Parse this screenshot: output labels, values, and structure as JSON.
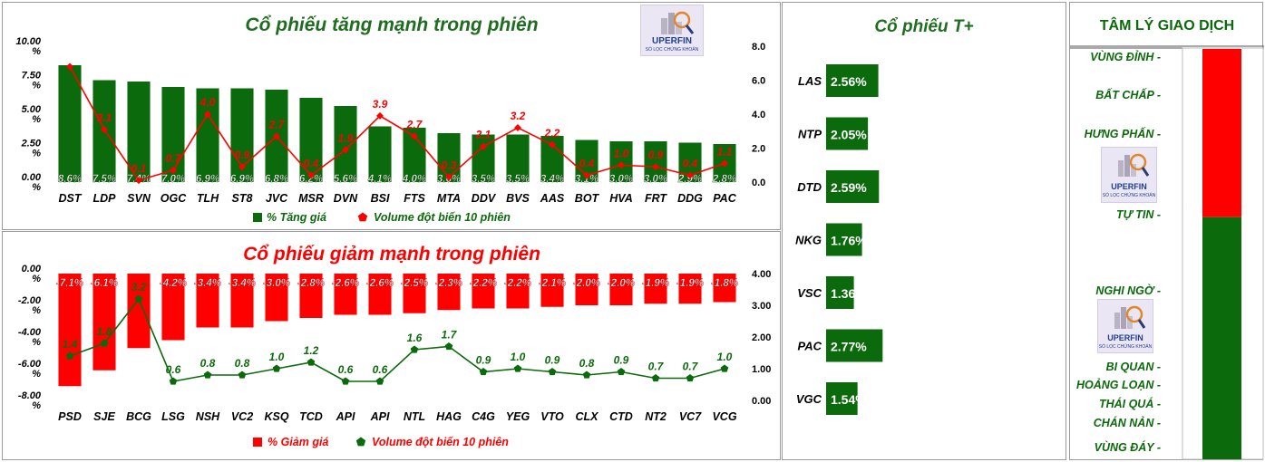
{
  "colors": {
    "green": "#0b6a0b",
    "red": "#ff0000",
    "title_green": "#1f6d1f",
    "title_red": "#ff0000",
    "label": "#000000"
  },
  "logo": {
    "text": "UPERFIN",
    "subtitle": "SỔ LỌC CHỨNG KHOÁN"
  },
  "chart_data": [
    {
      "type": "bar",
      "title": "Cổ phiếu tăng mạnh trong phiên",
      "categories": [
        "DST",
        "LDP",
        "SVN",
        "OGC",
        "TLH",
        "ST8",
        "JVC",
        "MSR",
        "DVN",
        "BSI",
        "FTS",
        "MTA",
        "DDV",
        "BVS",
        "AAS",
        "BOT",
        "HVA",
        "FRT",
        "DDG",
        "PAC"
      ],
      "series": [
        {
          "name": "% Tăng giá",
          "type": "bar",
          "values": [
            8.6,
            7.5,
            7.4,
            7.0,
            6.9,
            6.9,
            6.8,
            6.2,
            5.6,
            4.1,
            4.0,
            3.6,
            3.5,
            3.5,
            3.4,
            3.1,
            3.0,
            3.0,
            2.9,
            2.8
          ],
          "labels": [
            "8.6%",
            "7.5%",
            "7.4%",
            "7.0%",
            "6.9%",
            "6.9%",
            "6.8%",
            "6.2%",
            "5.6%",
            "4.1%",
            "4.0%",
            "3.6%",
            "3.5%",
            "3.5%",
            "3.4%",
            "3.1%",
            "3.0%",
            "3.0%",
            "2.9%",
            "2.8%"
          ]
        },
        {
          "name": "Volume đột biến 10 phiên",
          "type": "line",
          "values": [
            6.8,
            3.1,
            0.1,
            0.7,
            4.0,
            0.9,
            2.7,
            0.4,
            1.9,
            3.9,
            2.7,
            0.3,
            2.1,
            3.2,
            2.2,
            0.4,
            1.0,
            0.9,
            0.4,
            1.1
          ],
          "labels": [
            "",
            "3.1",
            "0.1",
            "0.7",
            "4.0",
            "0.9",
            "2.7",
            "0.4",
            "1.9",
            "3.9",
            "2.7",
            "0.3",
            "2.1",
            "3.2",
            "2.2",
            "0.4",
            "1.0",
            "0.9",
            "0.4",
            "1.1"
          ]
        }
      ],
      "y_left": {
        "ticks": [
          "10.00 %",
          "7.50 %",
          "5.00 %",
          "2.50 %",
          "0.00 %"
        ],
        "ylim": [
          0,
          10
        ]
      },
      "y_right": {
        "ticks": [
          "8.0",
          "6.0",
          "4.0",
          "2.0",
          "0.0"
        ],
        "ylim": [
          0,
          8
        ]
      },
      "legend": "bottom"
    },
    {
      "type": "bar",
      "title": "Cổ phiếu giảm mạnh trong phiên",
      "categories": [
        "PSD",
        "SJE",
        "BCG",
        "LSG",
        "NSH",
        "VC2",
        "KSQ",
        "TCD",
        "API",
        "API",
        "NTL",
        "HAG",
        "C4G",
        "YEG",
        "VTO",
        "CLX",
        "CTD",
        "NT2",
        "VC7",
        "VCG"
      ],
      "series": [
        {
          "name": "% Giảm giá",
          "type": "bar",
          "values": [
            -7.1,
            -6.1,
            -4.7,
            -4.2,
            -3.4,
            -3.4,
            -3.0,
            -2.8,
            -2.6,
            -2.6,
            -2.5,
            -2.3,
            -2.2,
            -2.2,
            -2.1,
            -2.0,
            -2.0,
            -1.9,
            -1.9,
            -1.8
          ],
          "labels": [
            "-7.1%",
            "-6.1%",
            "",
            "-4.2%",
            "-3.4%",
            "-3.4%",
            "-3.0%",
            "-2.8%",
            "-2.6%",
            "-2.6%",
            "-2.5%",
            "-2.3%",
            "-2.2%",
            "-2.2%",
            "-2.1%",
            "-2.0%",
            "-2.0%",
            "-1.9%",
            "-1.9%",
            "-1.8%"
          ]
        },
        {
          "name": "Volume đột biến 10 phiên",
          "type": "line",
          "values": [
            1.4,
            1.8,
            3.2,
            0.6,
            0.8,
            0.8,
            1.0,
            1.2,
            0.6,
            0.6,
            1.6,
            1.7,
            0.9,
            1.0,
            0.9,
            0.8,
            0.9,
            0.7,
            0.7,
            1.0
          ],
          "labels": [
            "1.4",
            "1.8",
            "3.2",
            "0.6",
            "0.8",
            "0.8",
            "1.0",
            "1.2",
            "0.6",
            "0.6",
            "1.6",
            "1.7",
            "0.9",
            "1.0",
            "0.9",
            "0.8",
            "0.9",
            "0.7",
            "0.7",
            "1.0"
          ]
        }
      ],
      "y_left": {
        "ticks": [
          "0.00 %",
          "-2.00 %",
          "-4.00 %",
          "-6.00 %",
          "-8.00 %"
        ],
        "ylim": [
          -8,
          0
        ]
      },
      "y_right": {
        "ticks": [
          "4.00",
          "3.00",
          "2.00",
          "1.00",
          "0.00"
        ],
        "ylim": [
          0,
          4
        ]
      },
      "legend": "bottom"
    },
    {
      "type": "bar",
      "title": "Cổ phiếu  T+",
      "orientation": "horizontal",
      "categories": [
        "LAS",
        "NTP",
        "DTD",
        "NKG",
        "VSC",
        "PAC",
        "VGC"
      ],
      "values": [
        2.56,
        2.05,
        2.59,
        1.76,
        1.36,
        2.77,
        1.54
      ],
      "labels": [
        "2.56%",
        "2.05%",
        "2.59%",
        "1.76%",
        "1.36%",
        "2.77%",
        "1.54%"
      ]
    },
    {
      "type": "bar",
      "title": "TÂM LÝ GIAO DỊCH",
      "categories": [
        "VÙNG ĐỈNH",
        "BẤT CHẤP",
        "HƯNG PHẤN",
        "TỰ TIN",
        "NGHI NGỜ",
        "BI QUAN",
        "HOẢNG LOẠN",
        "THÁI QUÁ",
        "CHÁN NẢN",
        "VÙNG ĐÁY"
      ],
      "gauge": {
        "red_fraction": 0.41,
        "green_fraction": 0.59
      }
    }
  ]
}
